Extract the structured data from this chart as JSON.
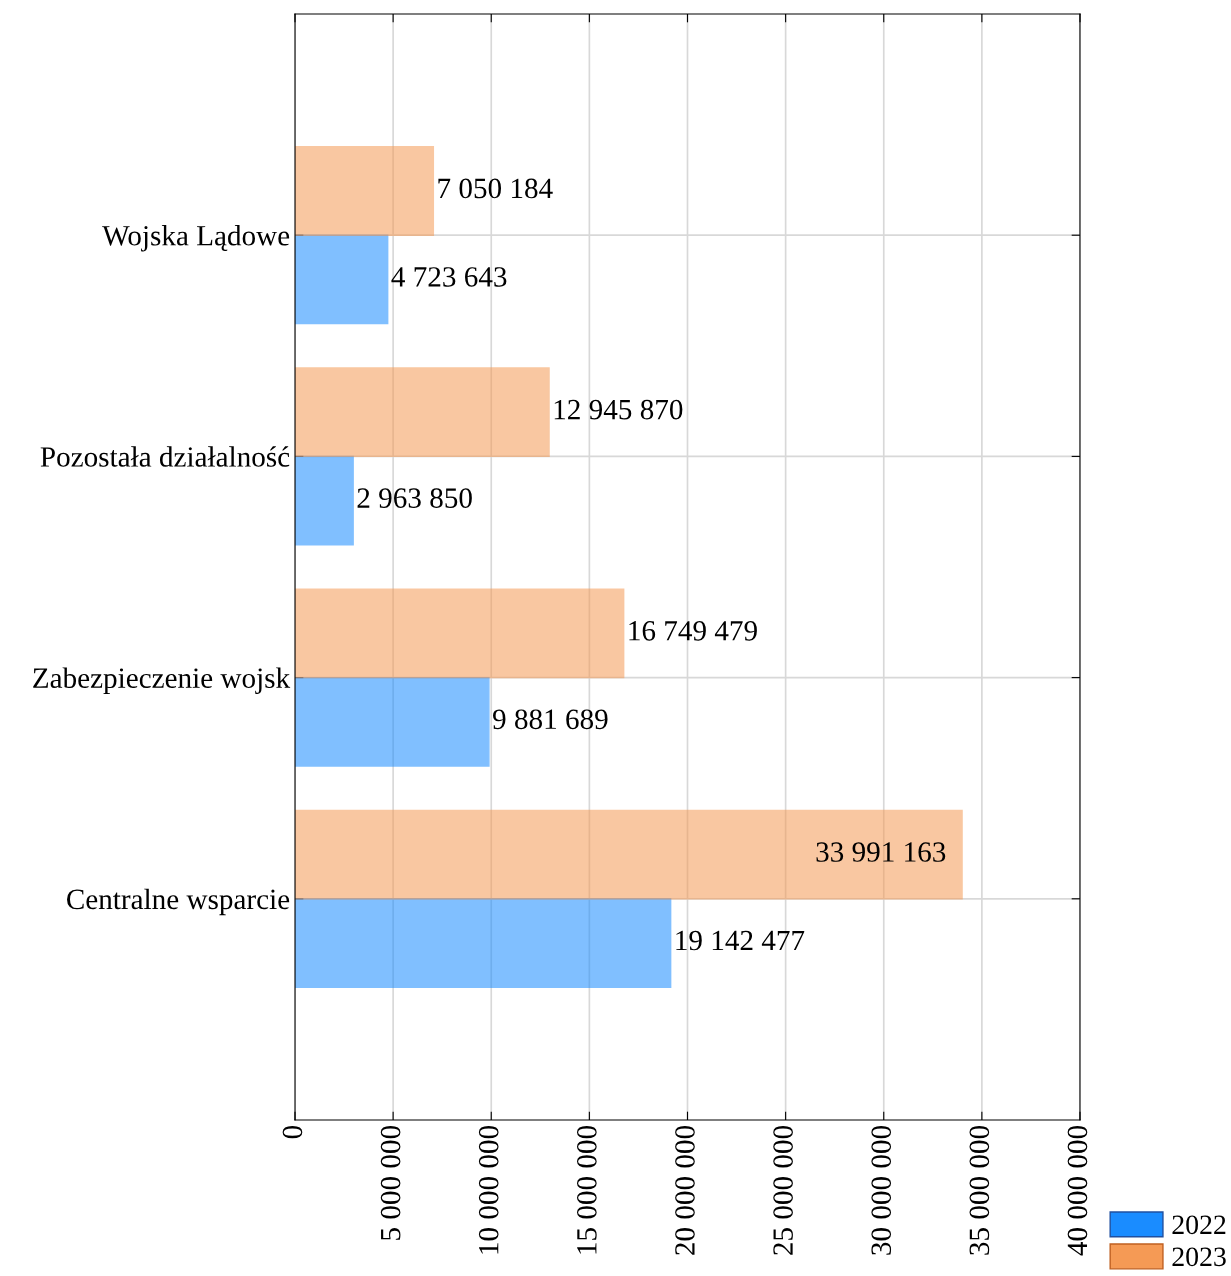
{
  "chart_data": {
    "type": "bar",
    "orientation": "horizontal",
    "categories": [
      "Wojska Lądowe",
      "Pozostała działalność",
      "Zabezpieczenie wojsk",
      "Centralne wsparcie"
    ],
    "series": [
      {
        "name": "2022",
        "color": "#1a8cff",
        "values": [
          4723643,
          2963850,
          9881689,
          19142477
        ],
        "value_labels": [
          "4 723 643",
          "2 963 850",
          "9 881 689",
          "19 142 477"
        ]
      },
      {
        "name": "2023",
        "color": "#f59a55",
        "values": [
          7050184,
          12945870,
          16749479,
          33991163
        ],
        "value_labels": [
          "7 050 184",
          "12 945 870",
          "16 749 479",
          "33 991 163"
        ]
      }
    ],
    "xlim": [
      0,
      40000000
    ],
    "xticks": [
      0,
      {
        "value": 5000000,
        "label": "5 000 000"
      },
      {
        "value": 10000000,
        "label": "10 000 000"
      },
      {
        "value": 15000000,
        "label": "15 000 000"
      },
      {
        "value": 20000000,
        "label": "20 000 000"
      },
      {
        "value": 25000000,
        "label": "25 000 000"
      },
      {
        "value": 30000000,
        "label": "30 000 000"
      },
      {
        "value": 35000000,
        "label": "35 000 000"
      },
      {
        "value": 40000000,
        "label": "40 000 000"
      }
    ],
    "grid": true,
    "legend": "bottom right"
  }
}
